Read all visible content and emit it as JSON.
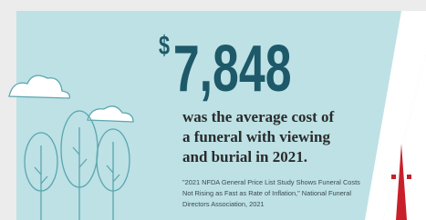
{
  "headline": {
    "currency": "$",
    "amount": "7,848"
  },
  "description": [
    "was the average cost of",
    "a funeral with viewing",
    "and burial in 2021."
  ],
  "citation": [
    "\"2021 NFDA General Price List Study Shows Funeral Costs",
    "Not Rising as Fast as Rate of Inflation,\" National Funeral",
    "Directors Association, 2021"
  ]
}
